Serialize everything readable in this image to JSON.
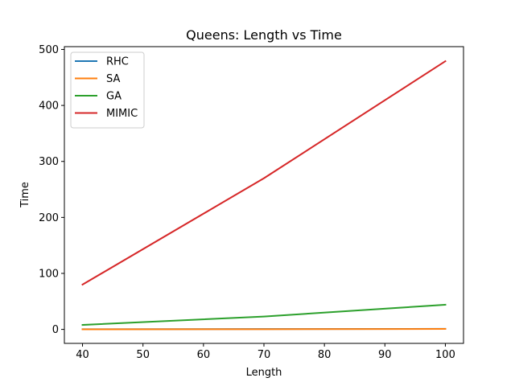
{
  "chart_data": {
    "type": "line",
    "title": "Queens: Length vs Time",
    "xlabel": "Length",
    "ylabel": "Time",
    "x": [
      40,
      70,
      100
    ],
    "xlim": [
      37,
      103
    ],
    "ylim": [
      -25,
      505
    ],
    "xticks": [
      40,
      50,
      60,
      70,
      80,
      90,
      100
    ],
    "yticks": [
      0,
      100,
      200,
      300,
      400,
      500
    ],
    "grid": false,
    "legend_position": "top-left",
    "series": [
      {
        "name": "RHC",
        "color": "#1f77b4",
        "values": [
          0.3,
          0.6,
          1.0
        ]
      },
      {
        "name": "SA",
        "color": "#ff7f0e",
        "values": [
          0.2,
          0.4,
          0.8
        ]
      },
      {
        "name": "GA",
        "color": "#2ca02c",
        "values": [
          8,
          23,
          44
        ]
      },
      {
        "name": "MIMIC",
        "color": "#d62728",
        "values": [
          80,
          270,
          479
        ]
      }
    ]
  }
}
